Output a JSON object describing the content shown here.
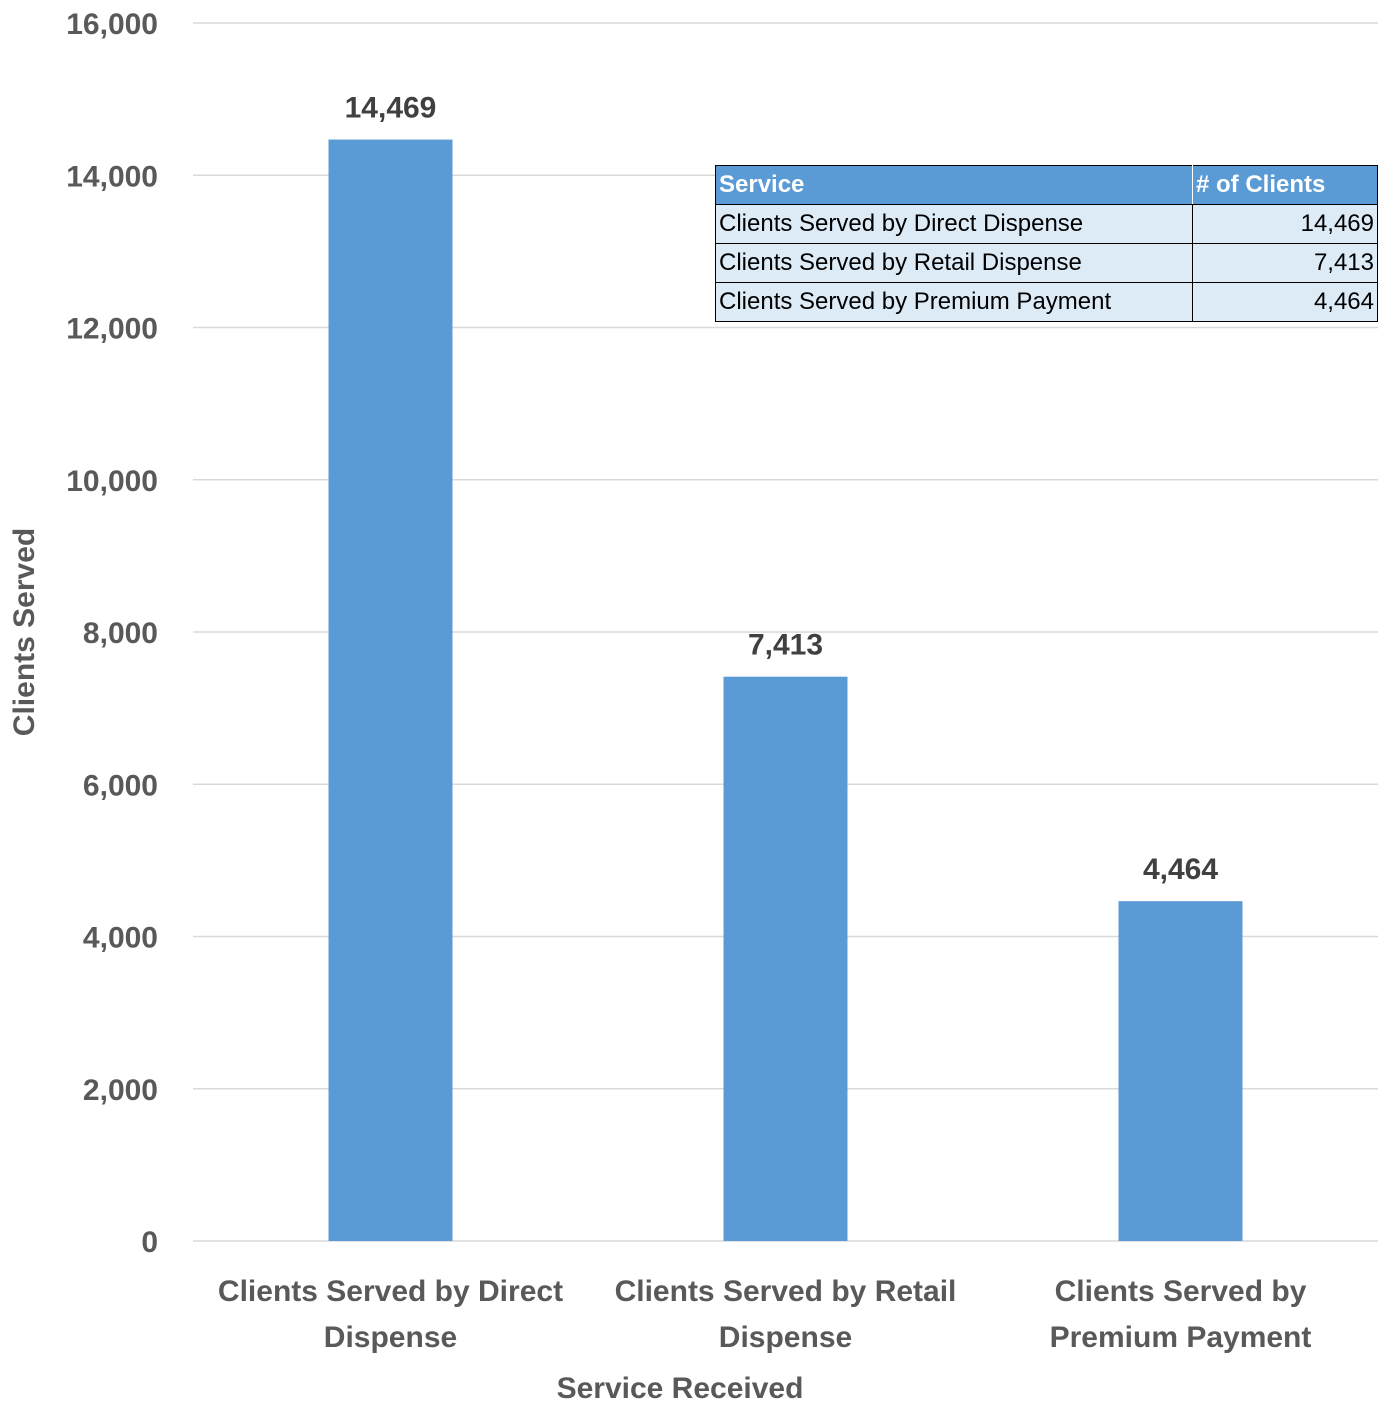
{
  "chart_data": {
    "type": "bar",
    "categories": [
      [
        "Clients Served by Direct",
        "Dispense"
      ],
      [
        "Clients Served by Retail",
        "Dispense"
      ],
      [
        "Clients Served by",
        "Premium Payment"
      ]
    ],
    "values": [
      14469,
      7413,
      4464
    ],
    "data_labels": [
      "14,469",
      "7,413",
      "4,464"
    ],
    "xlabel": "Service Received",
    "ylabel": "Clients Served",
    "ylim": [
      0,
      16000
    ],
    "yticks": [
      0,
      2000,
      4000,
      6000,
      8000,
      10000,
      12000,
      14000,
      16000
    ],
    "ytick_labels": [
      "0",
      "2,000",
      "4,000",
      "6,000",
      "8,000",
      "10,000",
      "12,000",
      "14,000",
      "16,000"
    ],
    "grid": "horizontal",
    "bar_color": "#5b9bd5"
  },
  "table": {
    "headers": [
      "Service",
      "# of Clients"
    ],
    "rows": [
      [
        "Clients Served by Direct Dispense",
        "14,469"
      ],
      [
        "Clients Served by Retail Dispense",
        "7,413"
      ],
      [
        "Clients Served by Premium Payment",
        "4,464"
      ]
    ]
  }
}
